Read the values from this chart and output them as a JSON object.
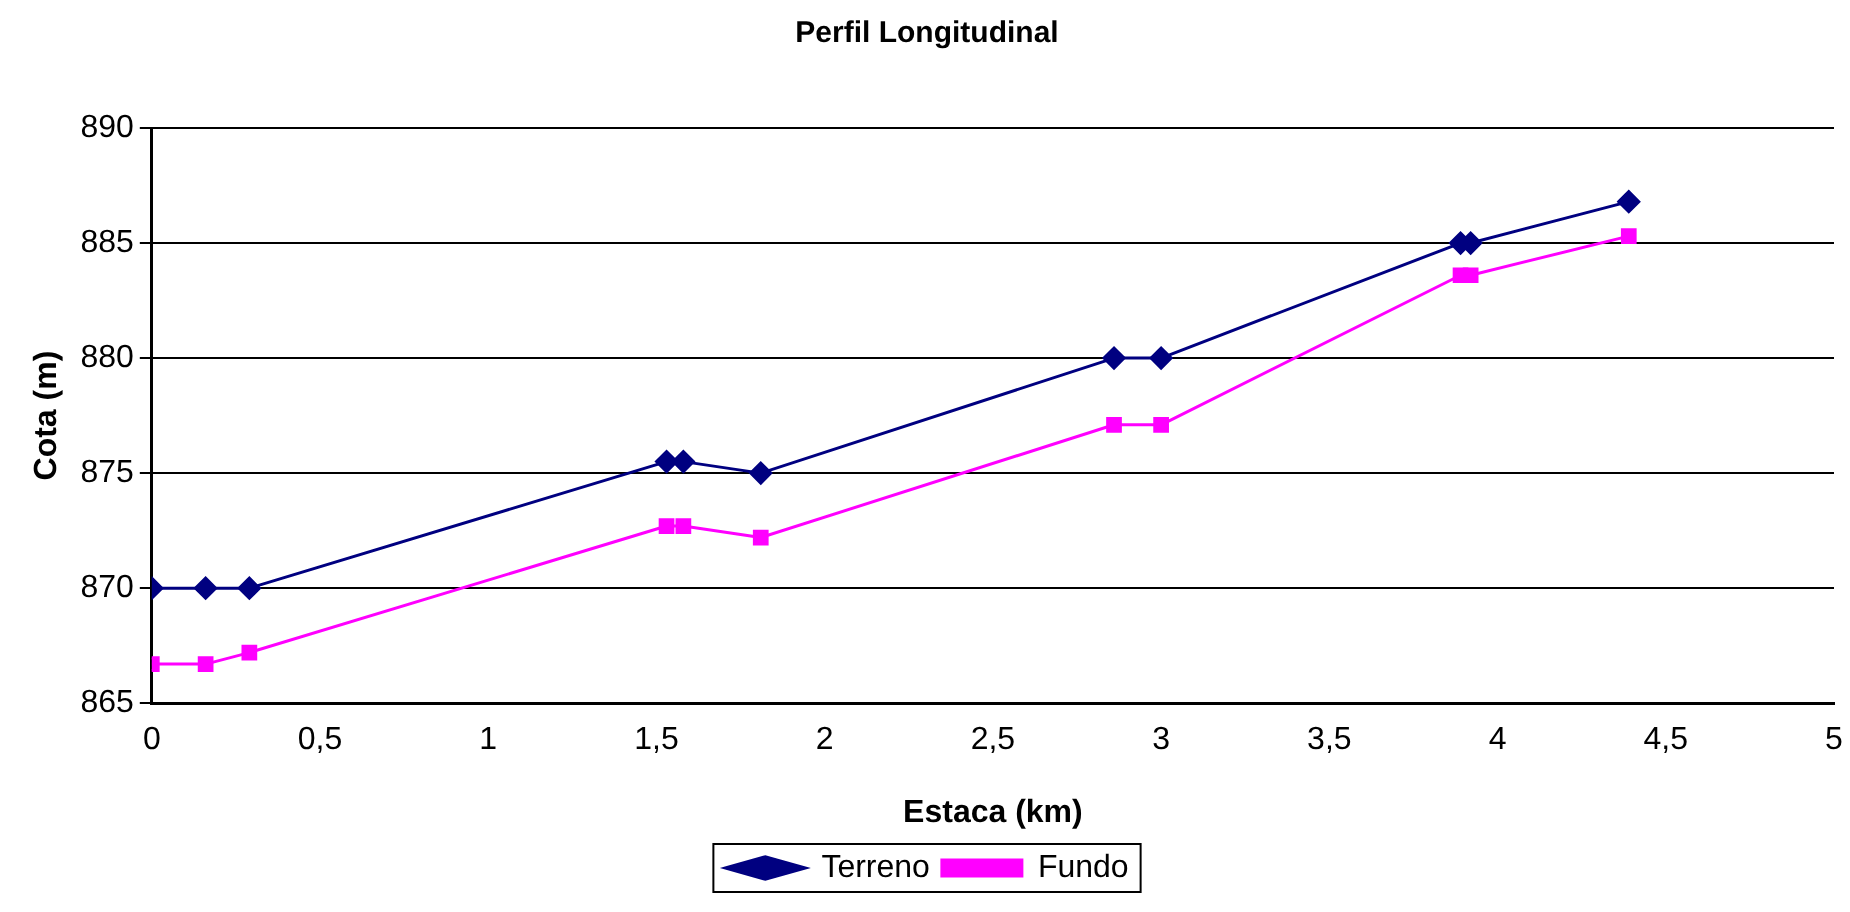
{
  "chart_data": {
    "type": "line",
    "title": "Perfil Longitudinal",
    "xlabel": "Estaca (km)",
    "ylabel": "Cota (m)",
    "xlim": [
      0,
      5
    ],
    "xticks": [
      {
        "value": 0,
        "label": "0"
      },
      {
        "value": 0.5,
        "label": "0,5"
      },
      {
        "value": 1,
        "label": "1"
      },
      {
        "value": 1.5,
        "label": "1,5"
      },
      {
        "value": 2,
        "label": "2"
      },
      {
        "value": 2.5,
        "label": "2,5"
      },
      {
        "value": 3,
        "label": "3"
      },
      {
        "value": 3.5,
        "label": "3,5"
      },
      {
        "value": 4,
        "label": "4"
      },
      {
        "value": 4.5,
        "label": "4,5"
      },
      {
        "value": 5,
        "label": "5"
      }
    ],
    "ylim": [
      865,
      890
    ],
    "yticks": [
      865,
      870,
      875,
      880,
      885,
      890
    ],
    "grid": "y",
    "legend": "bottom",
    "series": [
      {
        "name": "Terreno",
        "color": "#000080",
        "marker": "diamond",
        "x": [
          0,
          0.16,
          0.29,
          1.53,
          1.58,
          1.81,
          2.86,
          3.0,
          3.89,
          3.92,
          4.39
        ],
        "values": [
          870,
          870,
          870,
          875.5,
          875.5,
          875,
          880,
          880,
          885,
          885,
          886.8
        ]
      },
      {
        "name": "Fundo",
        "color": "#ff00ff",
        "marker": "square",
        "x": [
          0,
          0.16,
          0.29,
          1.53,
          1.58,
          1.81,
          2.86,
          3.0,
          3.89,
          3.92,
          4.39
        ],
        "values": [
          866.7,
          866.7,
          867.2,
          872.7,
          872.7,
          872.2,
          877.1,
          877.1,
          883.6,
          883.6,
          885.3
        ]
      }
    ]
  }
}
